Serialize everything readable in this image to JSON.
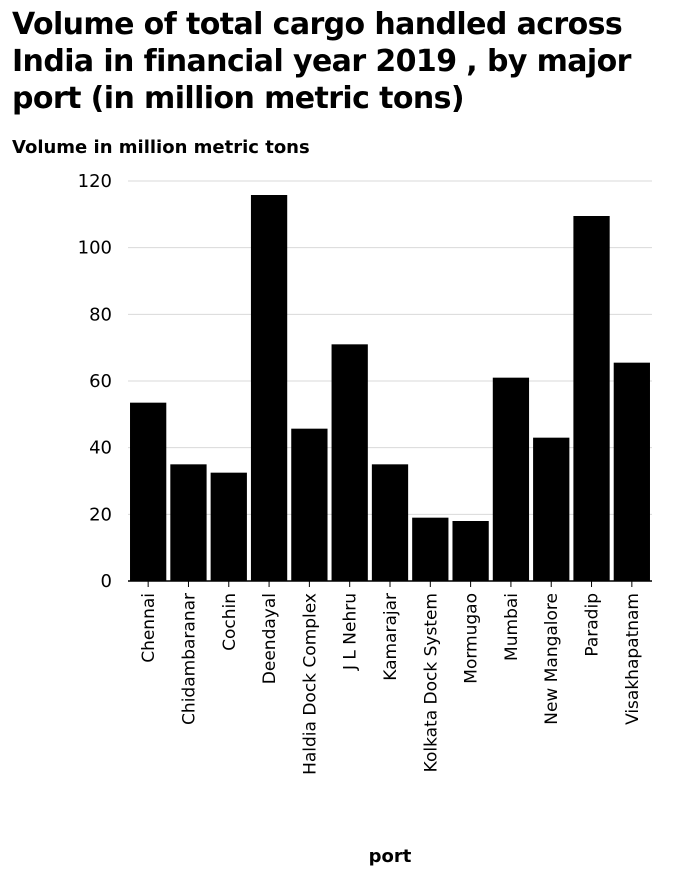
{
  "chart_data": {
    "type": "bar",
    "title": "Volume of total cargo handled across India in financial year 2019 , by major port (in million metric tons)",
    "ylabel": "Volume in million metric tons",
    "xlabel": "port",
    "ylim": [
      0,
      120
    ],
    "yticks": [
      0,
      20,
      40,
      60,
      80,
      100,
      120
    ],
    "grid": true,
    "bar_color": "#000000",
    "grid_color": "#d9d9d9",
    "categories": [
      "Chennai",
      "Chidambaranar",
      "Cochin",
      "Deendayal",
      "Haldia Dock Complex",
      "J L Nehru",
      "Kamarajar",
      "Kolkata Dock System",
      "Mormugao",
      "Mumbai",
      "New Mangalore",
      "Paradip",
      "Visakhapatnam"
    ],
    "values": [
      53.5,
      35,
      32.5,
      115.8,
      45.7,
      71,
      35,
      19,
      18,
      61,
      43,
      109.5,
      65.5
    ]
  }
}
